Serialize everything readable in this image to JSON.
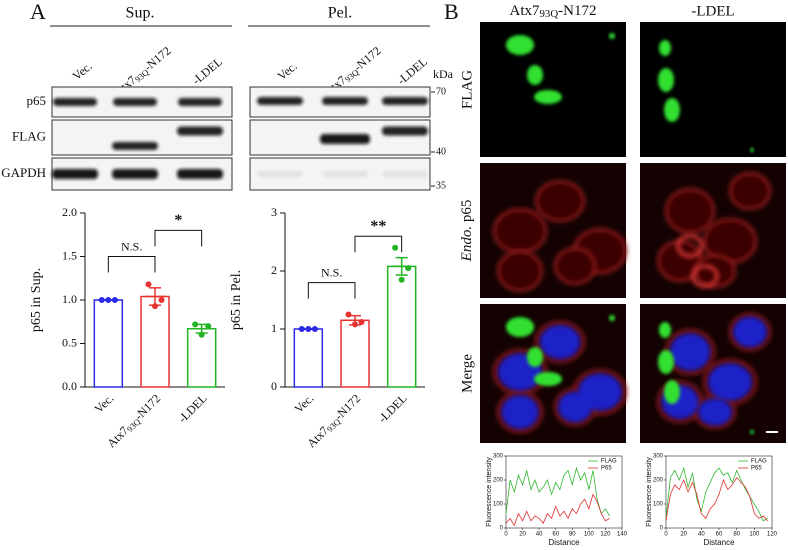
{
  "figure": {
    "panel_a": "A",
    "panel_b": "B",
    "sup": "Sup.",
    "pel": "Pel.",
    "lanes": [
      "Vec.",
      {
        "base": "Atx7",
        "sub": "93Q",
        "suffix": "-N172"
      },
      "-LDEL"
    ],
    "kda": "kDa",
    "markers": [
      "70",
      "40",
      "35"
    ],
    "blot_rows": [
      "p65",
      "FLAG",
      "GAPDH"
    ],
    "image_columns": [
      {
        "base": "Atx7",
        "sub": "93Q",
        "suffix": "-N172"
      },
      "-LDEL"
    ],
    "image_rows": [
      "FLAG",
      {
        "italic": "Endo.",
        "rest": " p65"
      },
      "Merge"
    ]
  },
  "chart_data": [
    {
      "type": "bar",
      "ylabel": "p65 in Sup.",
      "categories": [
        "Vec.",
        {
          "base": "Atx7",
          "sub": "93Q",
          "suffix": "-N172"
        },
        "-LDEL"
      ],
      "values": [
        1.0,
        1.04,
        0.67
      ],
      "errors": [
        0,
        0.1,
        0.05
      ],
      "points": [
        [
          1.0,
          1.0,
          1.0
        ],
        [
          1.18,
          0.93,
          1.0
        ],
        [
          0.72,
          0.6,
          0.7
        ]
      ],
      "colors": [
        "#2a2ae8",
        "#e83232",
        "#22b422"
      ],
      "ylim": [
        0,
        2
      ],
      "yticks": [
        {
          "value": 0,
          "label": "0.0"
        },
        {
          "value": 0.5,
          "label": "0.5"
        },
        {
          "value": 1,
          "label": "1.0"
        },
        {
          "value": 1.5,
          "label": "1.5"
        },
        {
          "value": 2,
          "label": "2.0"
        }
      ],
      "significance": [
        {
          "label": "N.S.",
          "y": 1.5
        },
        {
          "label": "*",
          "y": 1.8
        }
      ]
    },
    {
      "type": "bar",
      "ylabel": "p65 in Pel.",
      "categories": [
        "Vec.",
        {
          "base": "Atx7",
          "sub": "93Q",
          "suffix": "-N172"
        },
        "-LDEL"
      ],
      "values": [
        1.0,
        1.15,
        2.08
      ],
      "errors": [
        0,
        0.08,
        0.15
      ],
      "points": [
        [
          1.0,
          1.0,
          1.0
        ],
        [
          1.25,
          1.08,
          1.12
        ],
        [
          2.4,
          1.85,
          2.05
        ]
      ],
      "colors": [
        "#2a2ae8",
        "#e83232",
        "#22b422"
      ],
      "ylim": [
        0,
        3
      ],
      "yticks": [
        0,
        1,
        2,
        3
      ],
      "significance": [
        {
          "label": "N.S.",
          "y": 1.8
        },
        {
          "label": "**",
          "y": 2.6
        }
      ]
    },
    {
      "type": "line",
      "xlabel": "Distance",
      "ylabel": "Fluorescence intensity",
      "legend": "upper right",
      "x": [
        0,
        5,
        10,
        15,
        20,
        25,
        30,
        35,
        40,
        45,
        50,
        55,
        60,
        65,
        70,
        75,
        80,
        85,
        90,
        95,
        100,
        105,
        110,
        115,
        120,
        125
      ],
      "series": [
        {
          "name": "FLAG",
          "color": "#2fb82f",
          "values": [
            60,
            200,
            150,
            220,
            180,
            240,
            160,
            200,
            150,
            170,
            200,
            140,
            190,
            160,
            220,
            240,
            180,
            250,
            200,
            230,
            160,
            240,
            120,
            60,
            80,
            50
          ]
        },
        {
          "name": "P65",
          "color": "#e03030",
          "values": [
            20,
            40,
            10,
            60,
            30,
            70,
            30,
            50,
            40,
            20,
            60,
            40,
            90,
            50,
            70,
            40,
            80,
            60,
            100,
            120,
            80,
            140,
            110,
            60,
            30,
            40
          ]
        }
      ],
      "xlim": [
        0,
        140
      ],
      "xticks": [
        0,
        20,
        40,
        60,
        80,
        100,
        120,
        140
      ],
      "ylim": [
        0,
        300
      ],
      "yticks": [
        0,
        100,
        200,
        300
      ]
    },
    {
      "type": "line",
      "xlabel": "Distance",
      "ylabel": "Fluorescence intensity",
      "legend": "upper right",
      "x": [
        0,
        5,
        10,
        15,
        20,
        25,
        30,
        35,
        40,
        45,
        50,
        55,
        60,
        65,
        70,
        75,
        80,
        85,
        90,
        95,
        100,
        105,
        110,
        115
      ],
      "series": [
        {
          "name": "FLAG",
          "color": "#2fb82f",
          "values": [
            40,
            210,
            240,
            200,
            250,
            170,
            230,
            120,
            70,
            150,
            190,
            230,
            250,
            220,
            230,
            190,
            240,
            200,
            160,
            130,
            100,
            70,
            30,
            40
          ]
        },
        {
          "name": "P65",
          "color": "#e03030",
          "values": [
            30,
            140,
            180,
            160,
            200,
            150,
            190,
            140,
            60,
            40,
            80,
            100,
            140,
            200,
            160,
            180,
            210,
            190,
            170,
            130,
            60,
            40,
            50,
            30
          ]
        }
      ],
      "xlim": [
        0,
        120
      ],
      "xticks": [
        0,
        20,
        40,
        60,
        80,
        100,
        120
      ],
      "ylim": [
        0,
        300
      ],
      "yticks": [
        0,
        100,
        200,
        300
      ]
    }
  ]
}
